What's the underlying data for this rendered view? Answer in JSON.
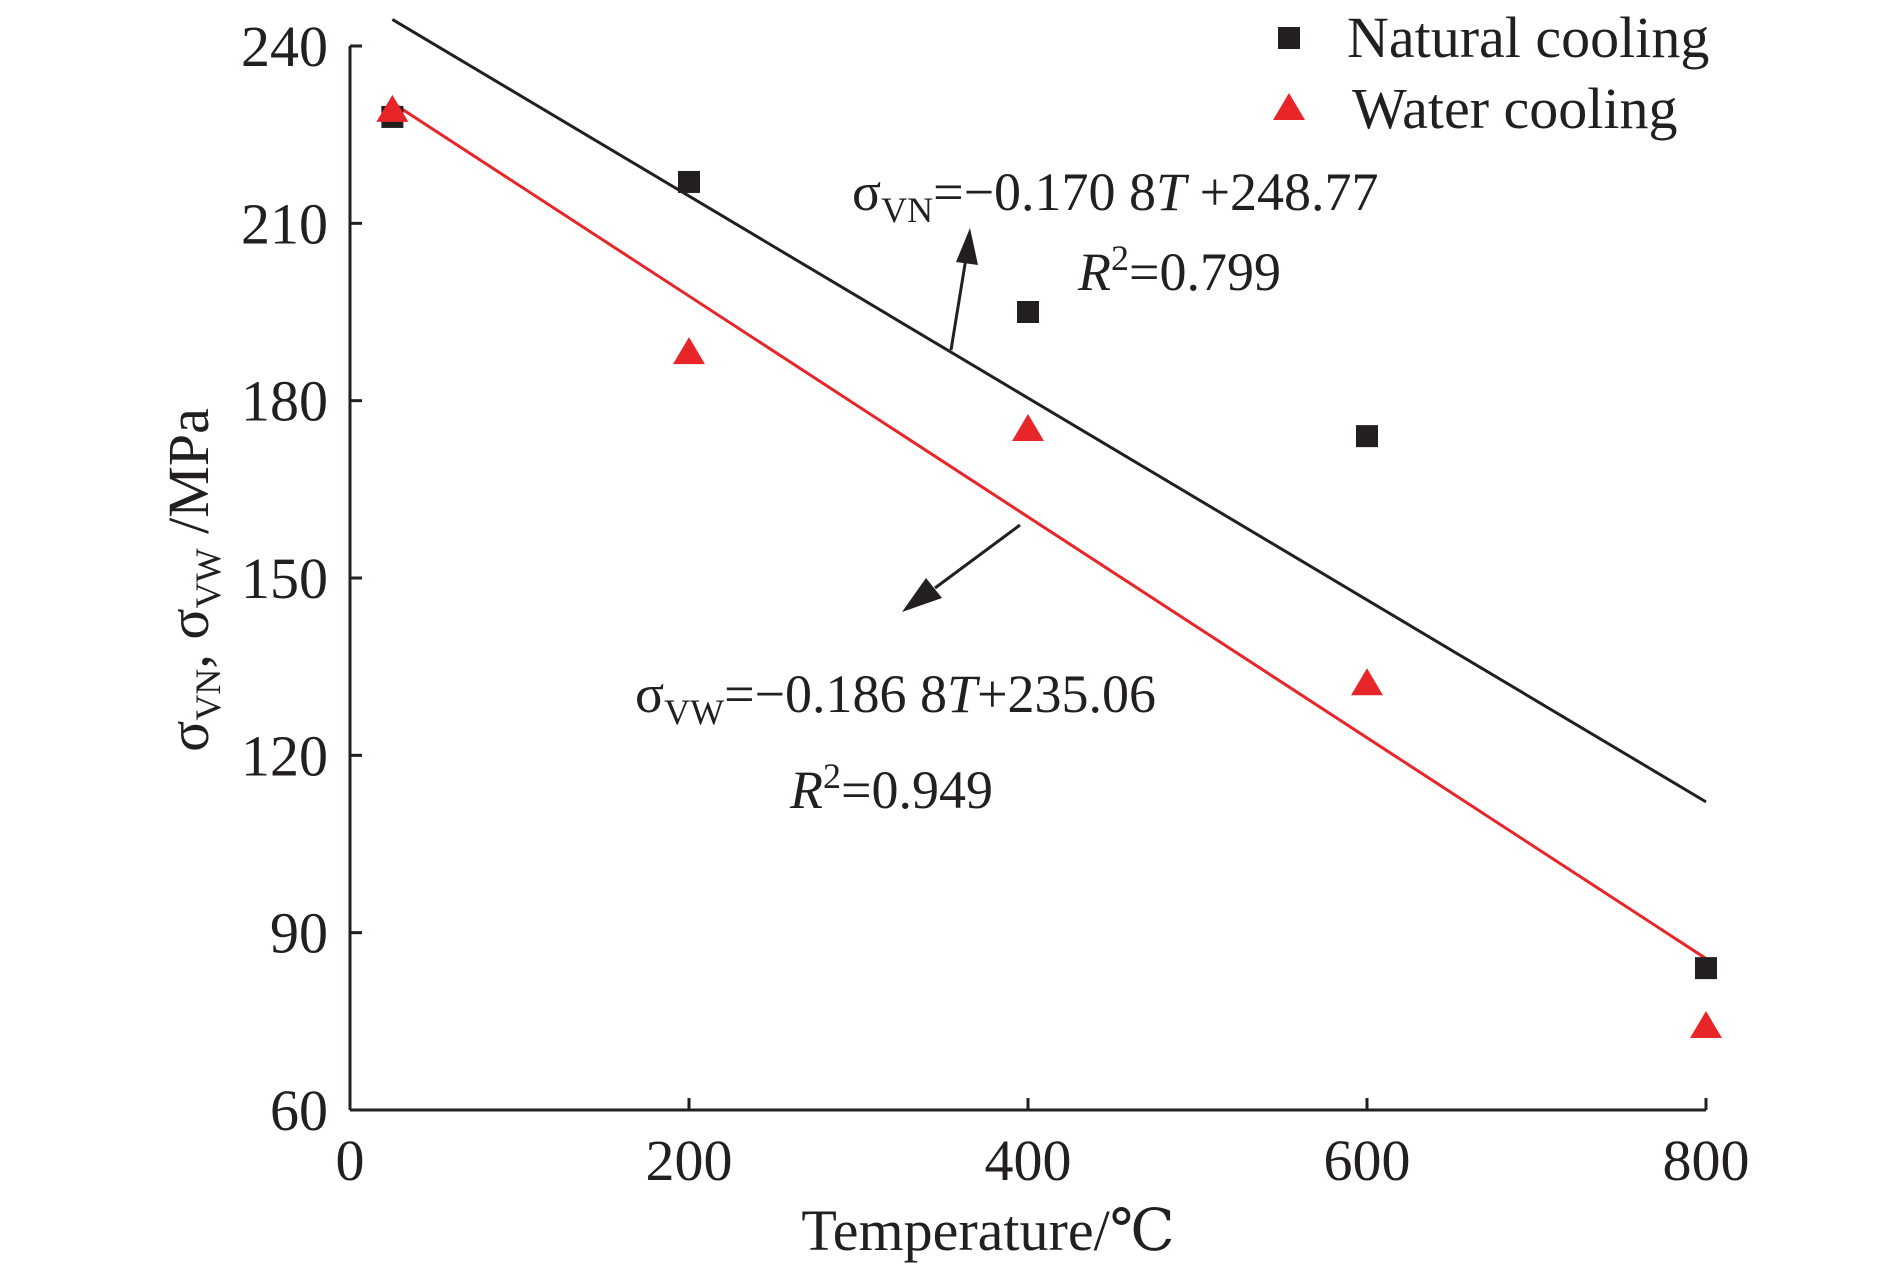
{
  "chart_data": {
    "type": "scatter",
    "xlabel": "Temperature/℃",
    "ylabel_parts": {
      "sigma": "σ",
      "sub_vn": "VN",
      "sep": ", ",
      "sub_vw": "VW",
      "unit": " /MPa"
    },
    "xlim": [
      0,
      800
    ],
    "ylim": [
      60,
      240
    ],
    "x_ticks": [
      0,
      200,
      400,
      600,
      800
    ],
    "y_ticks": [
      60,
      90,
      120,
      150,
      180,
      210,
      240
    ],
    "grid": false,
    "legend_position": "top-right",
    "series": [
      {
        "name": "Natural cooling",
        "marker": "square",
        "color": "#231f20",
        "x": [
          25,
          200,
          400,
          600,
          800
        ],
        "y": [
          228,
          217,
          195,
          174,
          84
        ],
        "fit": {
          "slope": -0.1708,
          "intercept": 248.77,
          "x_range": [
            25,
            800
          ]
        }
      },
      {
        "name": "Water cooling",
        "marker": "triangle",
        "color": "#e8262a",
        "x": [
          25,
          200,
          400,
          600,
          800
        ],
        "y": [
          229,
          188,
          175,
          132,
          74
        ],
        "fit": {
          "slope": -0.1868,
          "intercept": 235.06,
          "x_range": [
            25,
            800
          ]
        }
      }
    ],
    "annotations": [
      {
        "sigma": "σ",
        "sub": "VN",
        "formula": "=−0.170 8",
        "var": "T",
        "rest": " +248.77",
        "r2_var": "R",
        "r2_sup": "2",
        "r2_rest": "=0.799"
      },
      {
        "sigma": "σ",
        "sub": "VW",
        "formula": "=−0.186 8",
        "var": "T",
        "rest": "+235.06",
        "r2_var": "R",
        "r2_sup": "2",
        "r2_rest": "=0.949"
      }
    ]
  }
}
